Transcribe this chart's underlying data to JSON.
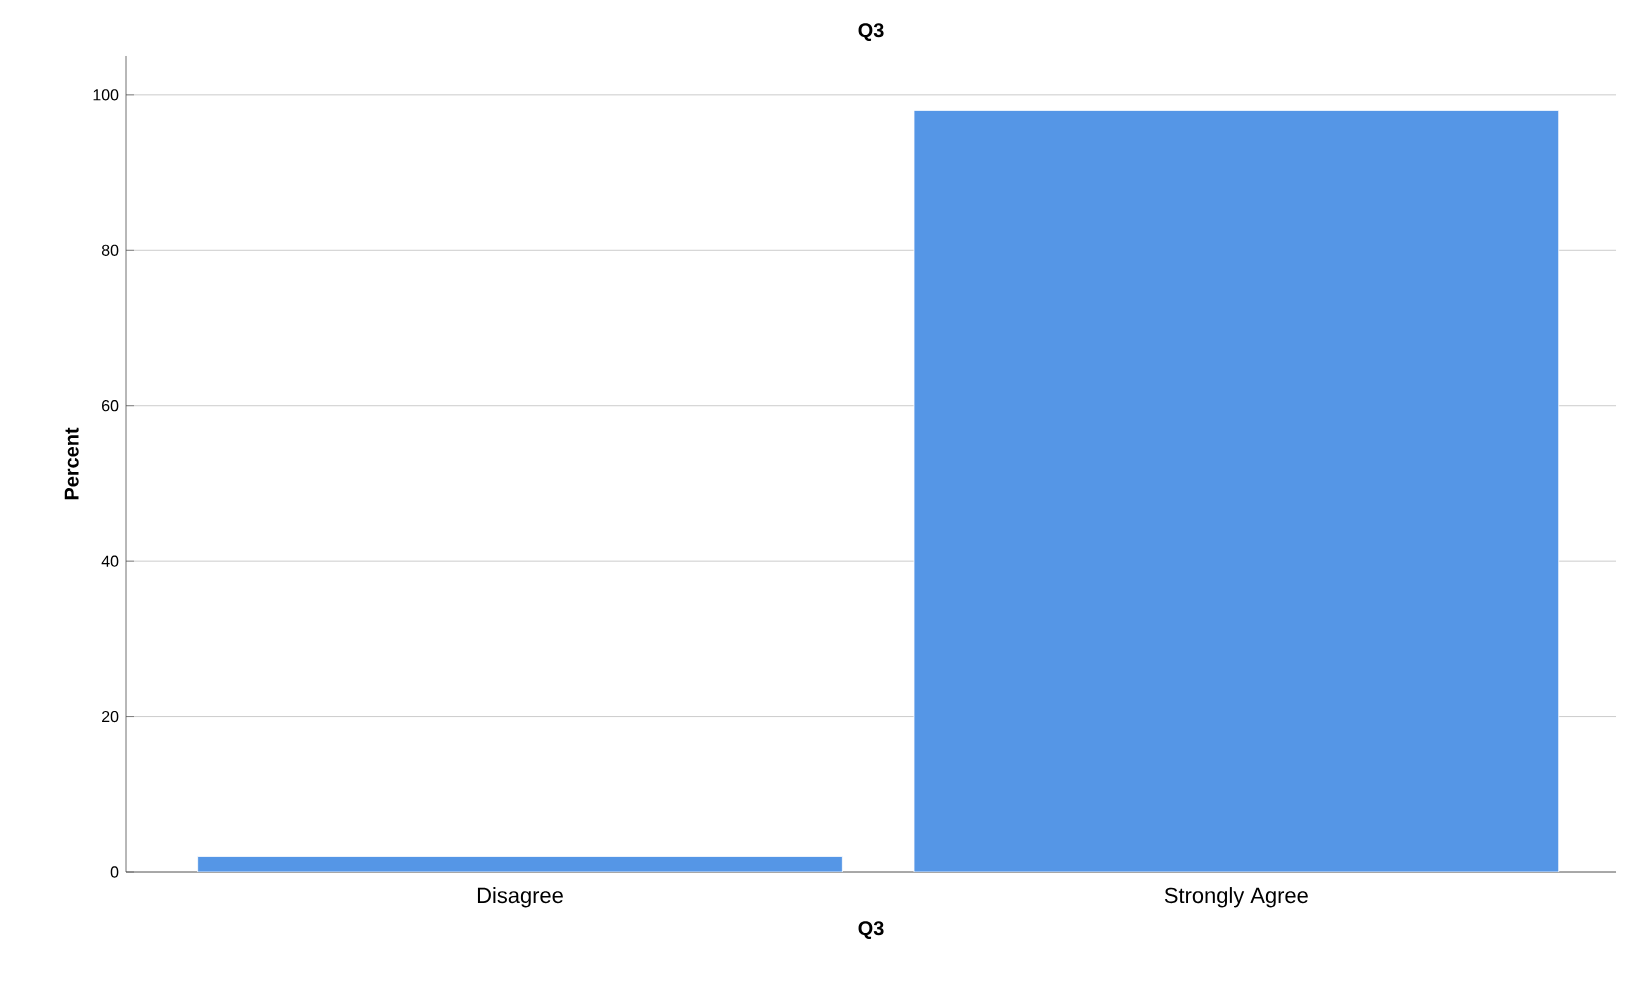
{
  "chart_data": {
    "type": "bar",
    "title": "Q3",
    "xlabel": "Q3",
    "ylabel": "Percent",
    "categories": [
      "Disagree",
      "Strongly Agree"
    ],
    "values": [
      2,
      98
    ],
    "color": "#5596e6",
    "ylim": [
      0,
      105
    ],
    "yticks": [
      0,
      20,
      40,
      60,
      80,
      100
    ],
    "grid": "y"
  }
}
